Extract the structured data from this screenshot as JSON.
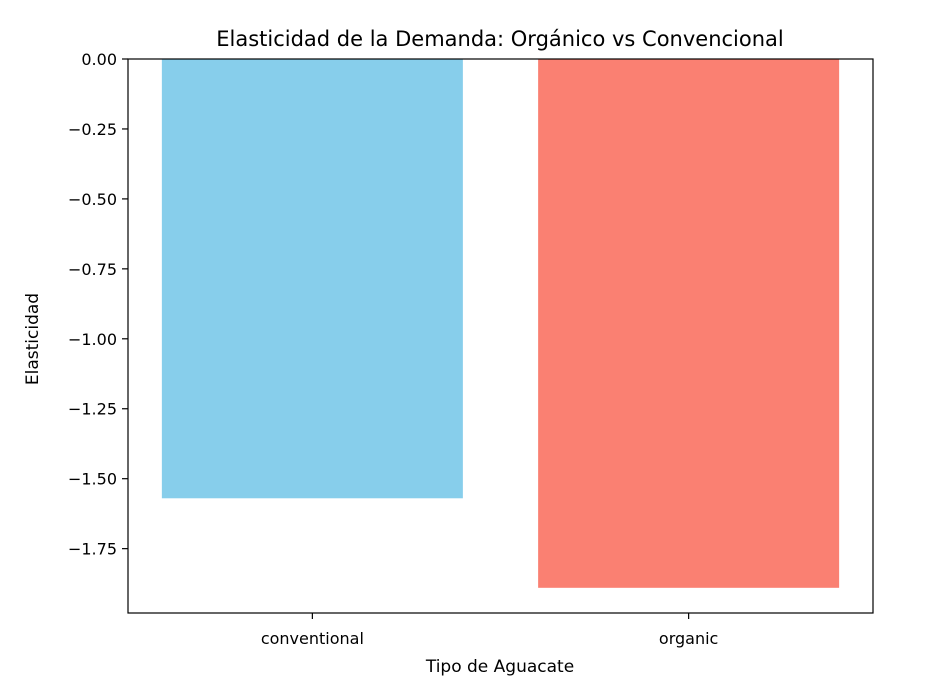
{
  "chart_data": {
    "type": "bar",
    "title": "Elasticidad de la Demanda: Orgánico vs Convencional",
    "xlabel": "Tipo de Aguacate",
    "ylabel": "Elasticidad",
    "categories": [
      "conventional",
      "organic"
    ],
    "values": [
      -1.57,
      -1.89
    ],
    "colors": [
      "#87CEEB",
      "#FA8072"
    ],
    "ylim": [
      -1.98,
      0.0
    ],
    "yticks": [
      0.0,
      -0.25,
      -0.5,
      -0.75,
      -1.0,
      -1.25,
      -1.5,
      -1.75
    ],
    "ytick_labels": [
      "0.00",
      "−0.25",
      "−0.50",
      "−0.75",
      "−1.00",
      "−1.25",
      "−1.50",
      "−1.75"
    ],
    "grid": false,
    "legend": "none"
  }
}
